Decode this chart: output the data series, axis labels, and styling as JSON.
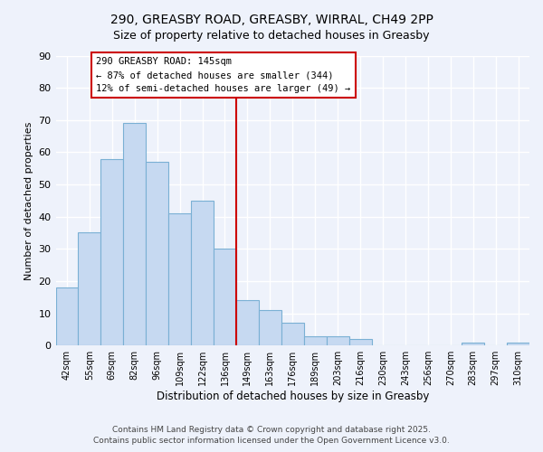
{
  "title1": "290, GREASBY ROAD, GREASBY, WIRRAL, CH49 2PP",
  "title2": "Size of property relative to detached houses in Greasby",
  "xlabel": "Distribution of detached houses by size in Greasby",
  "ylabel": "Number of detached properties",
  "bins": [
    "42sqm",
    "55sqm",
    "69sqm",
    "82sqm",
    "96sqm",
    "109sqm",
    "122sqm",
    "136sqm",
    "149sqm",
    "163sqm",
    "176sqm",
    "189sqm",
    "203sqm",
    "216sqm",
    "230sqm",
    "243sqm",
    "256sqm",
    "270sqm",
    "283sqm",
    "297sqm",
    "310sqm"
  ],
  "values": [
    18,
    35,
    58,
    69,
    57,
    41,
    45,
    30,
    14,
    11,
    7,
    3,
    3,
    2,
    0,
    0,
    0,
    0,
    1,
    0,
    1
  ],
  "bar_color": "#c6d9f1",
  "bar_edge_color": "#7ab0d4",
  "vline_x": 7.5,
  "vline_color": "#cc0000",
  "annotation_text": "290 GREASBY ROAD: 145sqm\n← 87% of detached houses are smaller (344)\n12% of semi-detached houses are larger (49) →",
  "annotation_box_color": "#ffffff",
  "annotation_box_edge": "#cc0000",
  "background_color": "#eef2fb",
  "grid_color": "#ffffff",
  "ylim": [
    0,
    90
  ],
  "yticks": [
    0,
    10,
    20,
    30,
    40,
    50,
    60,
    70,
    80,
    90
  ],
  "footer1": "Contains HM Land Registry data © Crown copyright and database right 2025.",
  "footer2": "Contains public sector information licensed under the Open Government Licence v3.0."
}
